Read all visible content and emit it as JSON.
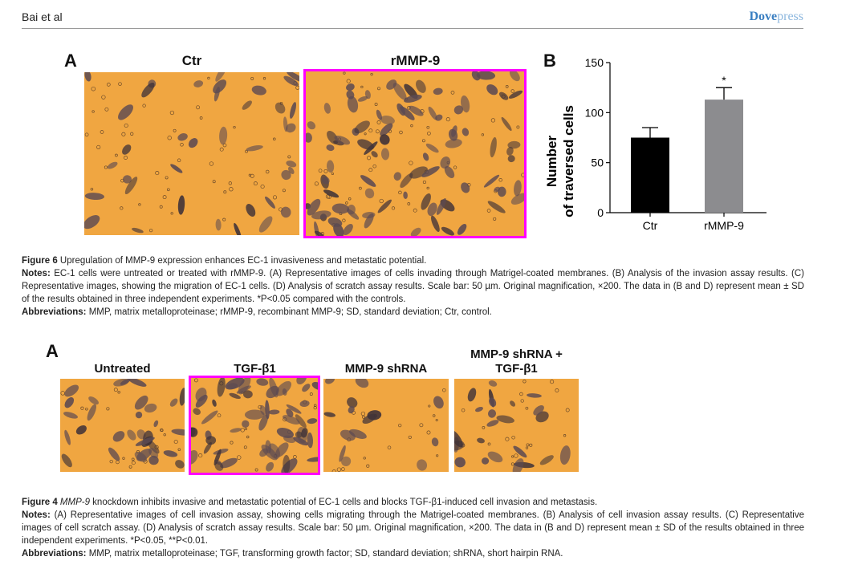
{
  "header": {
    "author": "Bai et al",
    "brand_bold": "Dove",
    "brand_light": "press"
  },
  "figure6": {
    "panel_a_label": "A",
    "panel_b_label": "B",
    "col_ctr": "Ctr",
    "col_rmmp9": "rMMP-9",
    "caption_title_label": "Figure 6",
    "caption_title_text": " Upregulation of MMP-9 expression enhances EC-1 invasiveness and metastatic potential.",
    "notes_label": "Notes:",
    "notes_text": " EC-1 cells were untreated or treated with rMMP-9. (A) Representative images of cells invading through Matrigel-coated membranes. (B) Analysis of the invasion assay results. (C) Representative images, showing the migration of EC-1 cells. (D) Analysis of scratch assay results. Scale bar: 50 µm. Original magnification, ×200. The data in (B and D) represent mean ± SD of the results obtained in three independent experiments. *P<0.05 compared with the controls.",
    "abbr_label": "Abbreviations:",
    "abbr_text": " MMP, matrix metalloproteinase; rMMP-9, recombinant MMP-9; SD, standard deviation; Ctr, control."
  },
  "chart_data": {
    "type": "bar",
    "categories": [
      "Ctr",
      "rMMP-9"
    ],
    "values": [
      75,
      113
    ],
    "errors": [
      10,
      12
    ],
    "significance": [
      "",
      "*"
    ],
    "ylabel_line1": "Number",
    "ylabel_line2": "of traversed cells",
    "ylim": [
      0,
      150
    ],
    "yticks": [
      "0",
      "50",
      "100",
      "150"
    ],
    "colors": [
      "#000000",
      "#8c8c8f"
    ]
  },
  "figure4": {
    "panel_a_label": "A",
    "col_untreated": "Untreated",
    "col_tgf": "TGF-β1",
    "col_shrna": "MMP-9 shRNA",
    "col_shrna_tgf_line1": "MMP-9 shRNA +",
    "col_shrna_tgf_line2": "TGF-β1",
    "caption_title_label": "Figure 4",
    "caption_title_italic": " MMP-9",
    "caption_title_text": " knockdown inhibits invasive and metastatic potential of EC-1 cells and blocks TGF-β1-induced cell invasion and metastasis.",
    "notes_label": "Notes:",
    "notes_text": " (A) Representative images of cell invasion assay, showing cells migrating through the Matrigel-coated membranes. (B) Analysis of cell invasion assay results. (C) Representative images of cell scratch assay. (D) Analysis of scratch assay results. Scale bar: 50 µm. Original magnification, ×200. The data in (B and D) represent mean ± SD of the results obtained in three independent experiments. *P<0.05, **P<0.01.",
    "abbr_label": "Abbreviations:",
    "abbr_text": " MMP, matrix metalloproteinase; TGF, transforming growth factor; SD, standard deviation; shRNA, short hairpin RNA."
  },
  "colors": {
    "highlight": "#ff00ff",
    "micro_bg": "#f0a641",
    "brand": "#3a7fc1"
  }
}
